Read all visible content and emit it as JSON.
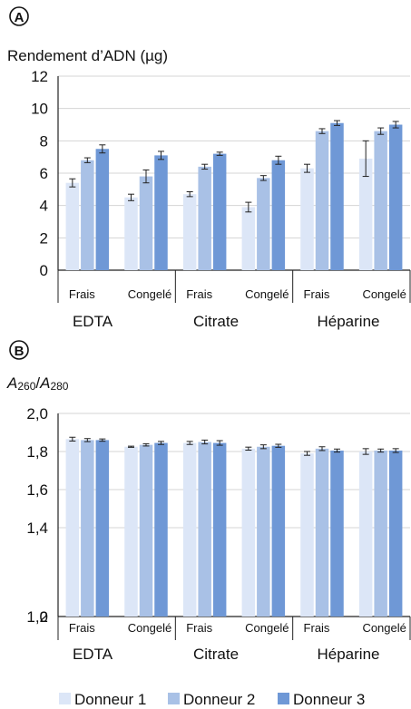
{
  "colors": {
    "donor1": "#dce6f7",
    "donor2": "#a9c1e6",
    "donor3": "#6f98d6",
    "grid": "#d4d4d4",
    "axis": "#222222",
    "text": "#111111"
  },
  "legend": {
    "items": [
      "Donneur 1",
      "Donneur 2",
      "Donneur 3"
    ]
  },
  "chart_data": [
    {
      "panel_label": "A",
      "type": "bar",
      "ylabel": "Rendement d’ADN (µg)",
      "ylim": [
        0,
        12
      ],
      "yticks": [
        0,
        2,
        4,
        6,
        8,
        10,
        12
      ],
      "ytick_labels": [
        "0",
        "2",
        "4",
        "6",
        "8",
        "10",
        "12"
      ],
      "grid": true,
      "groups": [
        "EDTA",
        "Citrate",
        "Héparine"
      ],
      "categories": [
        "Frais",
        "Congelé",
        "Frais",
        "Congelé",
        "Frais",
        "Congelé"
      ],
      "series": [
        {
          "name": "Donneur 1",
          "values": [
            5.4,
            4.5,
            4.7,
            3.9,
            6.3,
            6.9
          ],
          "errors": [
            0.25,
            0.2,
            0.15,
            0.3,
            0.25,
            1.1
          ]
        },
        {
          "name": "Donneur 2",
          "values": [
            6.8,
            5.8,
            6.4,
            5.7,
            8.6,
            8.6
          ],
          "errors": [
            0.15,
            0.4,
            0.15,
            0.15,
            0.15,
            0.2
          ]
        },
        {
          "name": "Donneur 3",
          "values": [
            7.5,
            7.1,
            7.2,
            6.8,
            9.1,
            9.0
          ],
          "errors": [
            0.25,
            0.25,
            0.1,
            0.25,
            0.15,
            0.2
          ]
        }
      ]
    },
    {
      "panel_label": "B",
      "type": "bar",
      "ylabel_main": "A",
      "ylabel_sub1": "260",
      "ylabel_sep": "/",
      "ylabel_main2": "A",
      "ylabel_sub2": "280",
      "ylim": [
        0,
        2.0
      ],
      "axis_break": true,
      "yticks": [
        0,
        1.2,
        1.4,
        1.6,
        1.8,
        2.0
      ],
      "ytick_labels": [
        "0",
        "1,2",
        "1,4",
        "1,6",
        "1,8",
        "2,0"
      ],
      "grid": true,
      "groups": [
        "EDTA",
        "Citrate",
        "Héparine"
      ],
      "categories": [
        "Frais",
        "Congelé",
        "Frais",
        "Congelé",
        "Frais",
        "Congelé"
      ],
      "series": [
        {
          "name": "Donneur 1",
          "values": [
            1.865,
            1.825,
            1.845,
            1.815,
            1.79,
            1.8
          ],
          "errors": [
            0.01,
            0.003,
            0.008,
            0.008,
            0.01,
            0.015
          ]
        },
        {
          "name": "Donneur 2",
          "values": [
            1.86,
            1.835,
            1.85,
            1.825,
            1.815,
            1.805
          ],
          "errors": [
            0.008,
            0.006,
            0.01,
            0.01,
            0.01,
            0.008
          ]
        },
        {
          "name": "Donneur 3",
          "values": [
            1.86,
            1.845,
            1.845,
            1.83,
            1.805,
            1.805
          ],
          "errors": [
            0.006,
            0.008,
            0.012,
            0.008,
            0.008,
            0.01
          ]
        }
      ]
    }
  ]
}
